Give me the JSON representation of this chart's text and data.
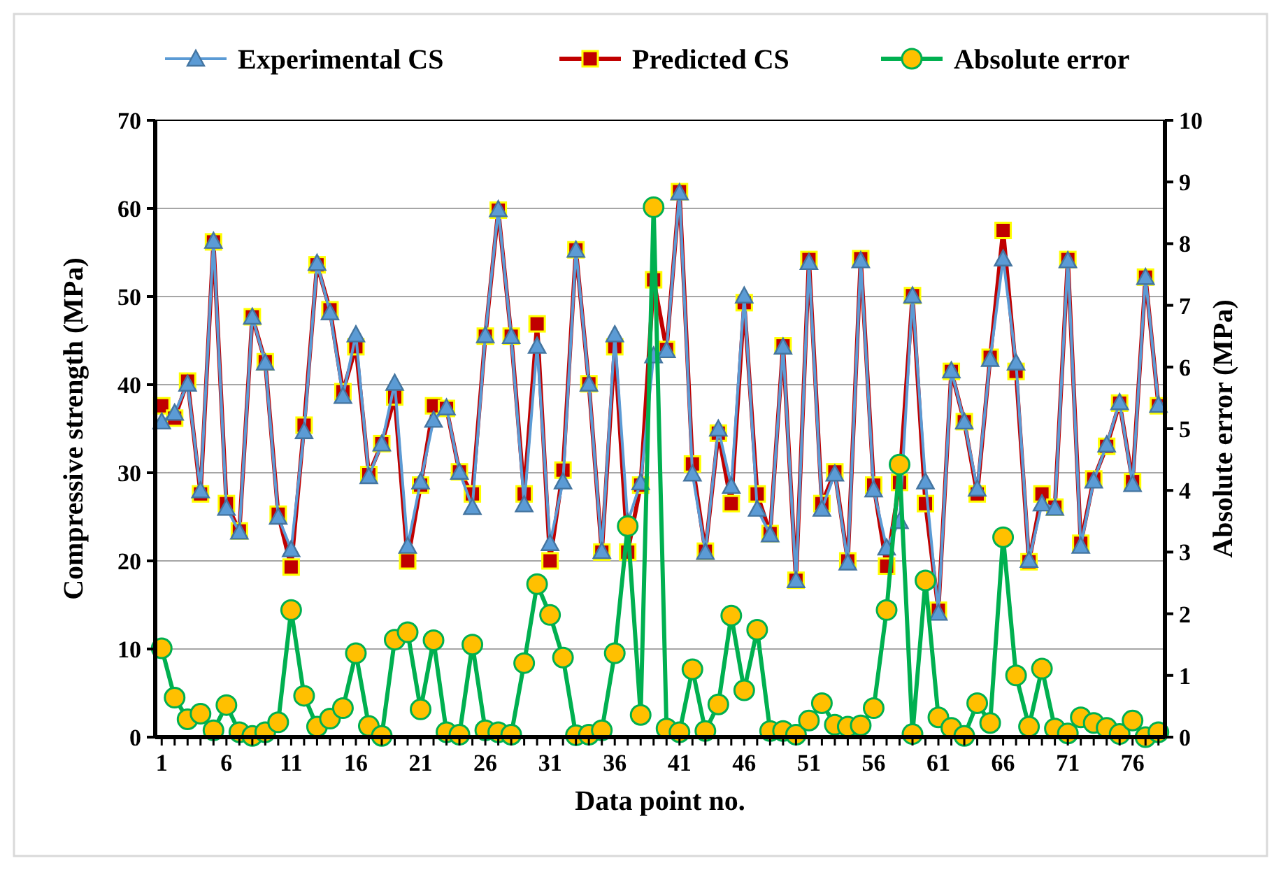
{
  "chart_data": {
    "type": "line",
    "xlabel": "Data point no.",
    "ylabel": "Compressive strength (MPa)",
    "y2label": "Absolute error (MPa)",
    "x": [
      1,
      2,
      3,
      4,
      5,
      6,
      7,
      8,
      9,
      10,
      11,
      12,
      13,
      14,
      15,
      16,
      17,
      18,
      19,
      20,
      21,
      22,
      23,
      24,
      25,
      26,
      27,
      28,
      29,
      30,
      31,
      32,
      33,
      34,
      35,
      36,
      37,
      38,
      39,
      40,
      41,
      42,
      43,
      44,
      45,
      46,
      47,
      48,
      49,
      50,
      51,
      52,
      53,
      54,
      55,
      56,
      57,
      58,
      59,
      60,
      61,
      62,
      63,
      64,
      65,
      66,
      67,
      68,
      69,
      70,
      71,
      72,
      73,
      74,
      75,
      76,
      77,
      78
    ],
    "xlim": [
      0.5,
      78.5
    ],
    "xticks": [
      1,
      {
        "value": 2,
        "label": null
      },
      {
        "value": 3,
        "label": null
      },
      {
        "value": 4,
        "label": null
      },
      {
        "value": 5,
        "label": null
      },
      6,
      {
        "value": 7,
        "label": null
      },
      {
        "value": 8,
        "label": null
      },
      {
        "value": 9,
        "label": null
      },
      {
        "value": 10,
        "label": null
      },
      11,
      {
        "value": 12,
        "label": null
      },
      {
        "value": 13,
        "label": null
      },
      {
        "value": 14,
        "label": null
      },
      {
        "value": 15,
        "label": null
      },
      16,
      {
        "value": 17,
        "label": null
      },
      {
        "value": 18,
        "label": null
      },
      {
        "value": 19,
        "label": null
      },
      {
        "value": 20,
        "label": null
      },
      21,
      {
        "value": 22,
        "label": null
      },
      {
        "value": 23,
        "label": null
      },
      {
        "value": 24,
        "label": null
      },
      {
        "value": 25,
        "label": null
      },
      26,
      {
        "value": 27,
        "label": null
      },
      {
        "value": 28,
        "label": null
      },
      {
        "value": 29,
        "label": null
      },
      {
        "value": 30,
        "label": null
      },
      31,
      {
        "value": 32,
        "label": null
      },
      {
        "value": 33,
        "label": null
      },
      {
        "value": 34,
        "label": null
      },
      {
        "value": 35,
        "label": null
      },
      36,
      {
        "value": 37,
        "label": null
      },
      {
        "value": 38,
        "label": null
      },
      {
        "value": 39,
        "label": null
      },
      {
        "value": 40,
        "label": null
      },
      41,
      {
        "value": 42,
        "label": null
      },
      {
        "value": 43,
        "label": null
      },
      {
        "value": 44,
        "label": null
      },
      {
        "value": 45,
        "label": null
      },
      46,
      {
        "value": 47,
        "label": null
      },
      {
        "value": 48,
        "label": null
      },
      {
        "value": 49,
        "label": null
      },
      {
        "value": 50,
        "label": null
      },
      51,
      {
        "value": 52,
        "label": null
      },
      {
        "value": 53,
        "label": null
      },
      {
        "value": 54,
        "label": null
      },
      {
        "value": 55,
        "label": null
      },
      56,
      {
        "value": 57,
        "label": null
      },
      {
        "value": 58,
        "label": null
      },
      {
        "value": 59,
        "label": null
      },
      {
        "value": 60,
        "label": null
      },
      61,
      {
        "value": 62,
        "label": null
      },
      {
        "value": 63,
        "label": null
      },
      {
        "value": 64,
        "label": null
      },
      {
        "value": 65,
        "label": null
      },
      66,
      {
        "value": 67,
        "label": null
      },
      {
        "value": 68,
        "label": null
      },
      {
        "value": 69,
        "label": null
      },
      {
        "value": 70,
        "label": null
      },
      71,
      {
        "value": 72,
        "label": null
      },
      {
        "value": 73,
        "label": null
      },
      {
        "value": 74,
        "label": null
      },
      {
        "value": 75,
        "label": null
      },
      76,
      {
        "value": 77,
        "label": null
      },
      {
        "value": 78,
        "label": null
      }
    ],
    "ylim": [
      0,
      70
    ],
    "yticks": [
      0,
      10,
      20,
      30,
      40,
      50,
      60,
      70
    ],
    "y2lim": [
      0,
      10
    ],
    "y2ticks": [
      0,
      1,
      2,
      3,
      4,
      5,
      6,
      7,
      8,
      9,
      10
    ],
    "grid": "y",
    "legend": "top",
    "line_style": "solid",
    "series": [
      {
        "name": "Experimental CS",
        "color": "#5b9bd5",
        "marker": "triangle",
        "values": [
          35.8,
          36.8,
          40.1,
          28.0,
          56.3,
          26.0,
          23.3,
          47.7,
          42.5,
          25.0,
          21.3,
          34.7,
          53.8,
          48.2,
          38.7,
          45.7,
          29.6,
          33.3,
          40.2,
          21.7,
          29.0,
          36.0,
          37.4,
          30.1,
          26.1,
          45.6,
          59.9,
          45.5,
          26.4,
          44.4,
          22.0,
          29.0,
          55.3,
          40.1,
          21.1,
          45.7,
          24.4,
          28.9,
          43.3,
          43.9,
          61.8,
          29.9,
          21.0,
          35.0,
          28.5,
          50.1,
          25.9,
          23.0,
          44.3,
          17.8,
          53.9,
          25.9,
          29.9,
          19.8,
          54.1,
          28.1,
          21.5,
          24.5,
          50.1,
          29.0,
          14.1,
          41.6,
          35.8,
          28.2,
          42.9,
          54.3,
          42.5,
          20.1,
          26.5,
          26.0,
          54.1,
          21.7,
          29.1,
          33.2,
          38.0,
          28.7,
          52.2,
          37.7
        ]
      },
      {
        "name": "Predicted CS",
        "color": "#c00000",
        "marker": "square",
        "values": [
          37.6,
          36.2,
          40.4,
          27.6,
          56.2,
          26.5,
          23.4,
          47.7,
          42.6,
          25.3,
          19.3,
          35.4,
          53.6,
          48.5,
          39.2,
          44.3,
          29.8,
          33.3,
          38.6,
          20.0,
          28.6,
          37.6,
          37.3,
          30.1,
          27.6,
          45.5,
          59.8,
          45.5,
          27.6,
          46.9,
          20.0,
          30.3,
          55.3,
          40.1,
          21.0,
          44.3,
          21.0,
          28.6,
          51.9,
          44.0,
          61.9,
          31.0,
          21.1,
          34.5,
          26.5,
          49.3,
          27.6,
          23.1,
          44.4,
          17.8,
          54.2,
          26.5,
          30.1,
          20.0,
          54.3,
          28.6,
          19.4,
          28.9,
          50.1,
          26.5,
          14.4,
          41.5,
          35.8,
          27.6,
          43.1,
          57.5,
          41.5,
          19.9,
          27.6,
          26.1,
          54.2,
          22.0,
          29.3,
          33.0,
          37.9,
          29.0,
          52.2,
          37.6
        ]
      },
      {
        "name": "Absolute error",
        "color": "#00b050",
        "marker": "circle",
        "axis": "y2",
        "values": [
          1.44,
          0.64,
          0.29,
          0.38,
          0.11,
          0.52,
          0.08,
          0.02,
          0.08,
          0.24,
          2.06,
          0.67,
          0.17,
          0.3,
          0.47,
          1.36,
          0.18,
          0.02,
          1.58,
          1.7,
          0.45,
          1.57,
          0.08,
          0.04,
          1.5,
          0.11,
          0.08,
          0.04,
          1.2,
          2.48,
          1.98,
          1.29,
          0.03,
          0.04,
          0.11,
          1.36,
          3.42,
          0.36,
          8.59,
          0.14,
          0.08,
          1.1,
          0.1,
          0.53,
          1.97,
          0.76,
          1.74,
          0.1,
          0.1,
          0.04,
          0.27,
          0.55,
          0.2,
          0.17,
          0.19,
          0.47,
          2.06,
          4.42,
          0.05,
          2.54,
          0.32,
          0.15,
          0.02,
          0.55,
          0.23,
          3.24,
          1.0,
          0.17,
          1.11,
          0.14,
          0.06,
          0.32,
          0.23,
          0.15,
          0.05,
          0.27,
          0.0,
          0.08
        ]
      }
    ]
  }
}
